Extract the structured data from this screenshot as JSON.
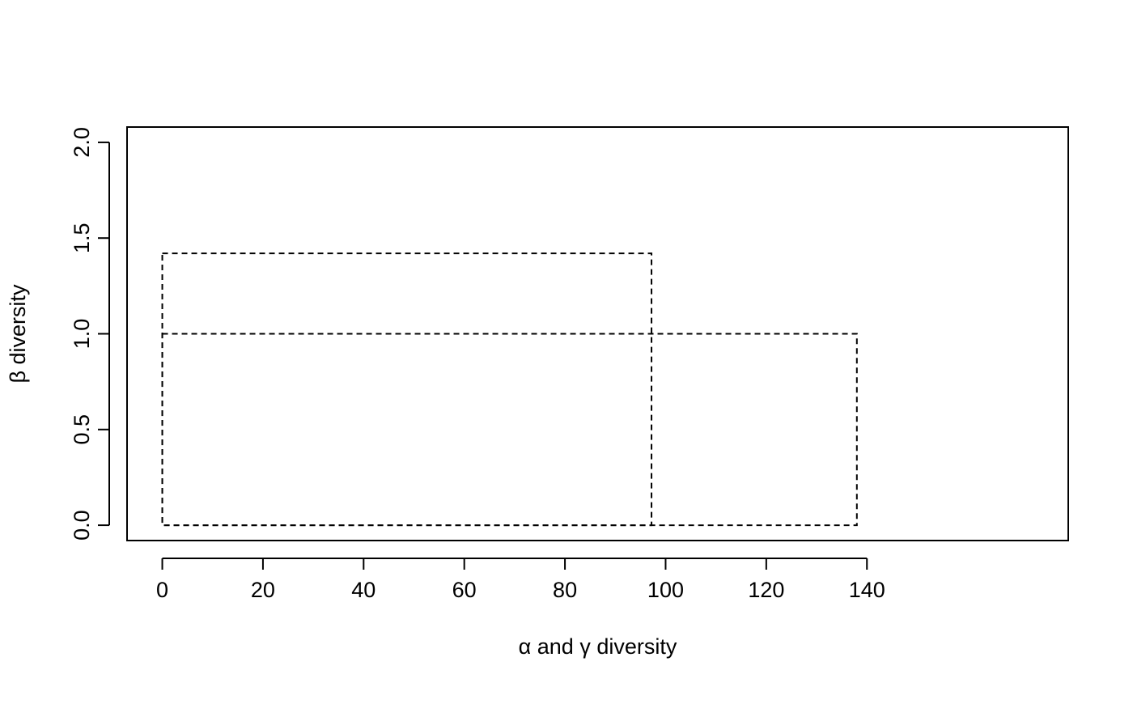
{
  "chart_data": {
    "type": "rect",
    "title": "",
    "xlabel": "α and γ diversity",
    "ylabel": "β diversity",
    "xlim": [
      -7,
      180
    ],
    "ylim": [
      -0.08,
      2.08
    ],
    "x_ticks": [
      0,
      20,
      40,
      60,
      80,
      100,
      120,
      140
    ],
    "y_ticks": [
      0.0,
      0.5,
      1.0,
      1.5,
      2.0
    ],
    "y_tick_labels": [
      "0.0",
      "0.5",
      "1.0",
      "1.5",
      "2.0"
    ],
    "series": [
      {
        "x": [
          0,
          97.2
        ],
        "y": [
          0,
          1.42
        ]
      },
      {
        "x": [
          0,
          138.0
        ],
        "y": [
          0,
          1.0
        ]
      }
    ],
    "line_style": "dashed",
    "grid": false,
    "colors": {
      "line": "#000000",
      "background": "#ffffff"
    }
  }
}
